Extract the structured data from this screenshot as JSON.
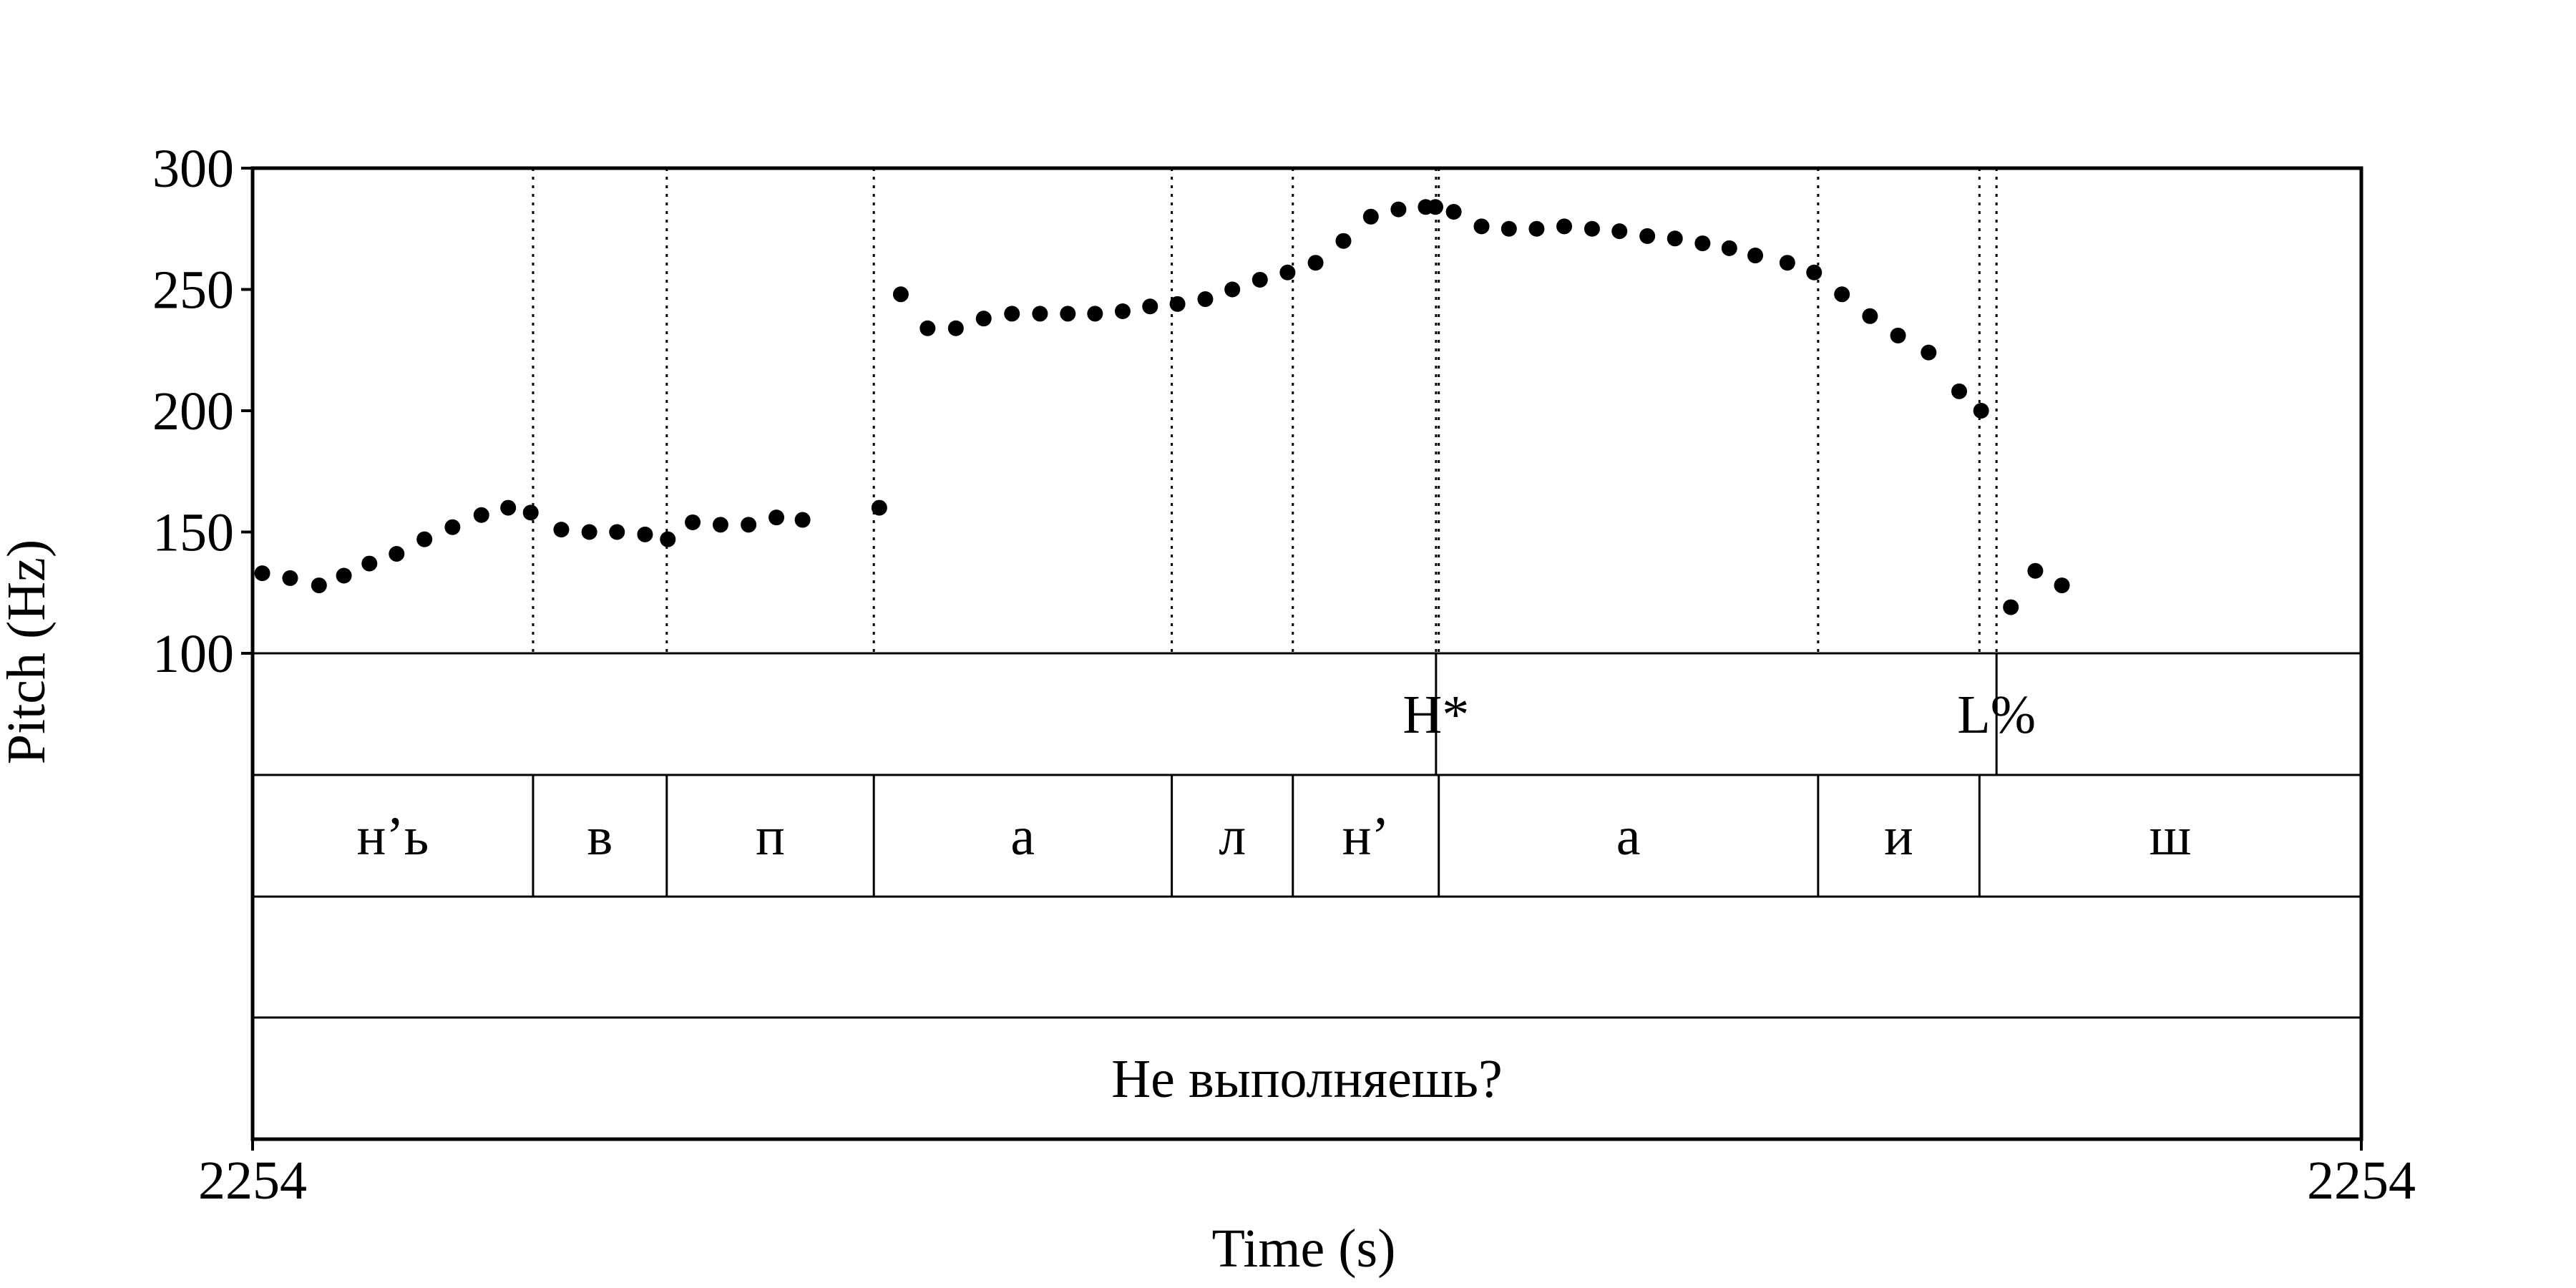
{
  "chart_data": {
    "type": "scatter",
    "xlabel": "Time (s)",
    "ylabel": "Pitch (Hz)",
    "ylim": [
      100,
      300
    ],
    "xlim": [
      0,
      1
    ],
    "y_ticks": [
      "100",
      "150",
      "200",
      "250",
      "300"
    ],
    "x_tick_labels": [
      "2254",
      "2254"
    ],
    "grid": false,
    "series": [
      {
        "x": [
          0.0046,
          0.0178,
          0.0315,
          0.0433,
          0.0554,
          0.0683,
          0.0815,
          0.0948,
          0.1085,
          0.1212,
          0.1319,
          0.1464,
          0.1597,
          0.1728,
          0.1861,
          0.1969,
          0.2087,
          0.2219,
          0.2352,
          0.2484,
          0.2608,
          0.2972,
          0.3074,
          0.3201,
          0.3335,
          0.3467,
          0.3601,
          0.3734,
          0.3866,
          0.3995,
          0.4126,
          0.4256,
          0.4386,
          0.4518,
          0.4646,
          0.4777,
          0.4908,
          0.5041,
          0.5173,
          0.5303,
          0.5434,
          0.5563,
          0.5609,
          0.5696,
          0.5828,
          0.5958,
          0.6089,
          0.622,
          0.6352,
          0.6482,
          0.6614,
          0.6745,
          0.6876,
          0.7003,
          0.7126,
          0.7278,
          0.7405,
          0.7537,
          0.767,
          0.7803,
          0.7948,
          0.8093,
          0.8197,
          0.8338,
          0.8454,
          0.858
        ],
        "y": [
          133,
          131,
          128,
          132,
          137,
          141,
          147,
          152,
          157,
          160,
          158,
          151,
          150,
          150,
          149,
          147,
          154,
          153,
          153,
          156,
          155,
          160,
          248,
          234,
          234,
          238,
          240,
          240,
          240,
          240,
          241,
          243,
          244,
          246,
          250,
          254,
          257,
          261,
          270,
          280,
          283,
          284,
          284,
          282,
          276,
          275,
          275,
          276,
          275,
          274,
          272,
          271,
          269,
          267,
          264,
          261,
          257,
          248,
          239,
          231,
          224,
          208,
          200,
          119,
          134,
          128
        ]
      }
    ],
    "tiers": [
      {
        "boundaries": [
          0.5612,
          0.827
        ],
        "labels": [
          {
            "x": 0.5612,
            "text": "H*"
          },
          {
            "x": 0.827,
            "text": "L%"
          }
        ]
      },
      {
        "boundaries": [
          0.133,
          0.1964,
          0.2946,
          0.4359,
          0.4933,
          0.5625,
          0.7424,
          0.8189
        ],
        "labels": [
          {
            "x": 0.0665,
            "text": "н’ь"
          },
          {
            "x": 0.1647,
            "text": "в"
          },
          {
            "x": 0.2455,
            "text": "п"
          },
          {
            "x": 0.3652,
            "text": "а"
          },
          {
            "x": 0.4646,
            "text": "л"
          },
          {
            "x": 0.5279,
            "text": "н’"
          },
          {
            "x": 0.6524,
            "text": "а"
          },
          {
            "x": 0.7806,
            "text": "и"
          },
          {
            "x": 0.9094,
            "text": "ш"
          }
        ]
      },
      {
        "boundaries": [],
        "labels": []
      },
      {
        "boundaries": [],
        "labels": [
          {
            "x": 0.5,
            "text": "Не выполняешь?"
          }
        ]
      }
    ]
  }
}
